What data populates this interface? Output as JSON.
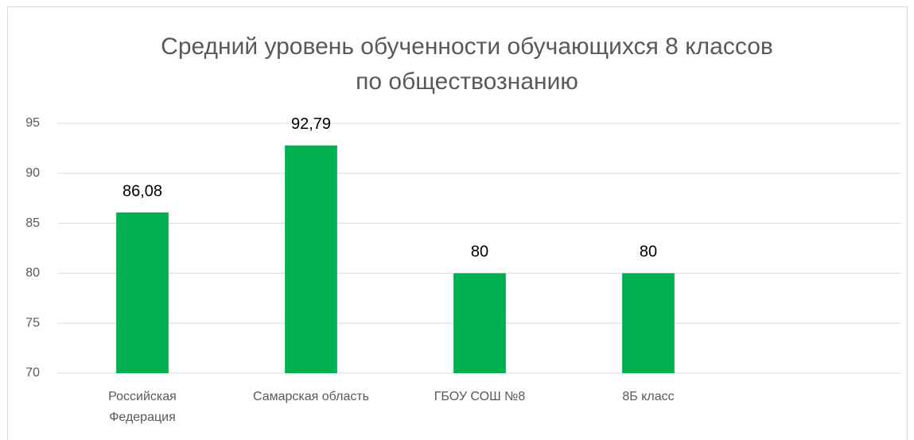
{
  "chart_data": {
    "type": "bar",
    "title": [
      "Средний уровень обученности обучающихся 8 классов",
      "по обществознанию"
    ],
    "categories": [
      "Российская Федерация",
      "Самарская область",
      "ГБОУ СОШ №8",
      "8Б класс",
      null
    ],
    "values": [
      86.08,
      92.79,
      80,
      80,
      null
    ],
    "value_labels": [
      "86,08",
      "92,79",
      "80",
      "80",
      null
    ],
    "color": "#00b050",
    "ylim": [
      70,
      95
    ],
    "yticks": [
      70,
      75,
      80,
      85,
      90,
      95
    ],
    "grid": true
  }
}
